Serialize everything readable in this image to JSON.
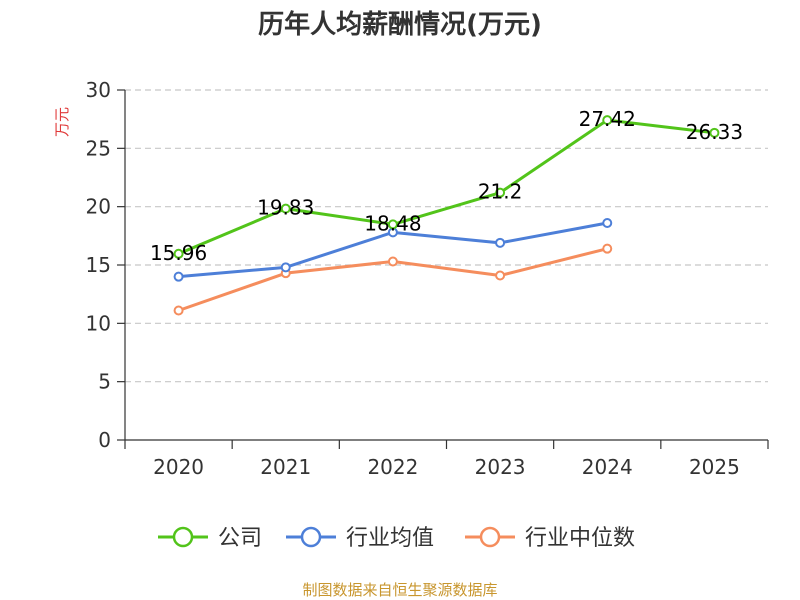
{
  "chart_data": {
    "type": "line",
    "title": "历年人均薪酬情况(万元)",
    "ylabel": "万元",
    "xlabel": "",
    "categories": [
      "2020",
      "2021",
      "2022",
      "2023",
      "2024",
      "2025"
    ],
    "ylim": [
      0,
      30
    ],
    "yticks": [
      0,
      5,
      10,
      15,
      20,
      25,
      30
    ],
    "grid": true,
    "legend_position": "bottom",
    "series": [
      {
        "name": "公司",
        "color": "#52c41a",
        "values": [
          15.96,
          19.83,
          18.48,
          21.2,
          27.42,
          26.33
        ],
        "show_labels": true,
        "labels": [
          "15.96",
          "19.83",
          "18.48",
          "21.2",
          "27.42",
          "26.33"
        ]
      },
      {
        "name": "行业均值",
        "color": "#4d7fd8",
        "values": [
          14.0,
          14.8,
          17.8,
          16.9,
          18.6,
          null
        ],
        "show_labels": false
      },
      {
        "name": "行业中位数",
        "color": "#f58d5d",
        "values": [
          11.1,
          14.3,
          15.3,
          14.1,
          16.4,
          null
        ],
        "show_labels": false
      }
    ],
    "source": "制图数据来自恒生聚源数据库",
    "colors": {
      "axis": "#333333",
      "grid": "#c8c8c8",
      "ylabel": "#e03a3a",
      "source": "#c8962e"
    }
  }
}
